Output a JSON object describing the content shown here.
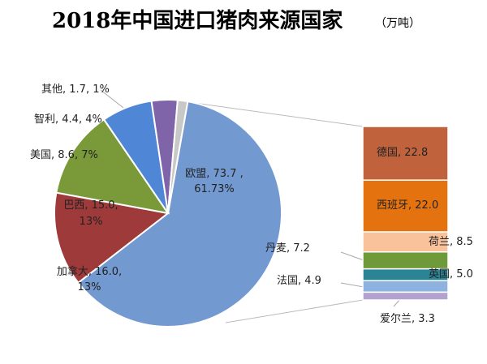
{
  "chart_data": {
    "type": "bar-of-pie",
    "title": "2018年中国进口猪肉来源国家",
    "unit": "（万吨）",
    "pie": [
      {
        "name": "欧盟",
        "value": 73.7,
        "percent": "61.73%",
        "color": "#7399d1",
        "label": "欧盟, 73.7 ,",
        "label2": "61.73%"
      },
      {
        "name": "加拿大",
        "value": 16.0,
        "percent": "13%",
        "color": "#9e3a3a",
        "label": "加拿大, 16.0,",
        "label2": "13%"
      },
      {
        "name": "巴西",
        "value": 15.0,
        "percent": "13%",
        "color": "#7a9a3a",
        "label": "巴西, 15.0,",
        "label2": "13%"
      },
      {
        "name": "美国",
        "value": 8.6,
        "percent": "7%",
        "color": "#4f86d6",
        "label": "美国, 8.6, 7%"
      },
      {
        "name": "智利",
        "value": 4.4,
        "percent": "4%",
        "color": "#7f64aa",
        "label": "智利, 4.4, 4%"
      },
      {
        "name": "其他",
        "value": 1.7,
        "percent": "1%",
        "color": "#c8c8c8",
        "label": "其他, 1.7, 1%"
      }
    ],
    "bar": [
      {
        "name": "德国",
        "value": 22.8,
        "color": "#c0633d",
        "label": "德国, 22.8"
      },
      {
        "name": "西班牙",
        "value": 22.0,
        "color": "#e3720f",
        "label": "西班牙, 22.0"
      },
      {
        "name": "荷兰",
        "value": 8.5,
        "color": "#f9c29b",
        "label": "荷兰, 8.5"
      },
      {
        "name": "丹麦",
        "value": 7.2,
        "color": "#6f9a3a",
        "label": "丹麦, 7.2"
      },
      {
        "name": "英国",
        "value": 5.0,
        "color": "#2a8496",
        "label": "英国, 5.0"
      },
      {
        "name": "法国",
        "value": 4.9,
        "color": "#8eb2e0",
        "label": "法国, 4.9"
      },
      {
        "name": "爱尔兰",
        "value": 3.3,
        "color": "#b3a2cf",
        "label": "爱尔兰, 3.3"
      }
    ]
  }
}
